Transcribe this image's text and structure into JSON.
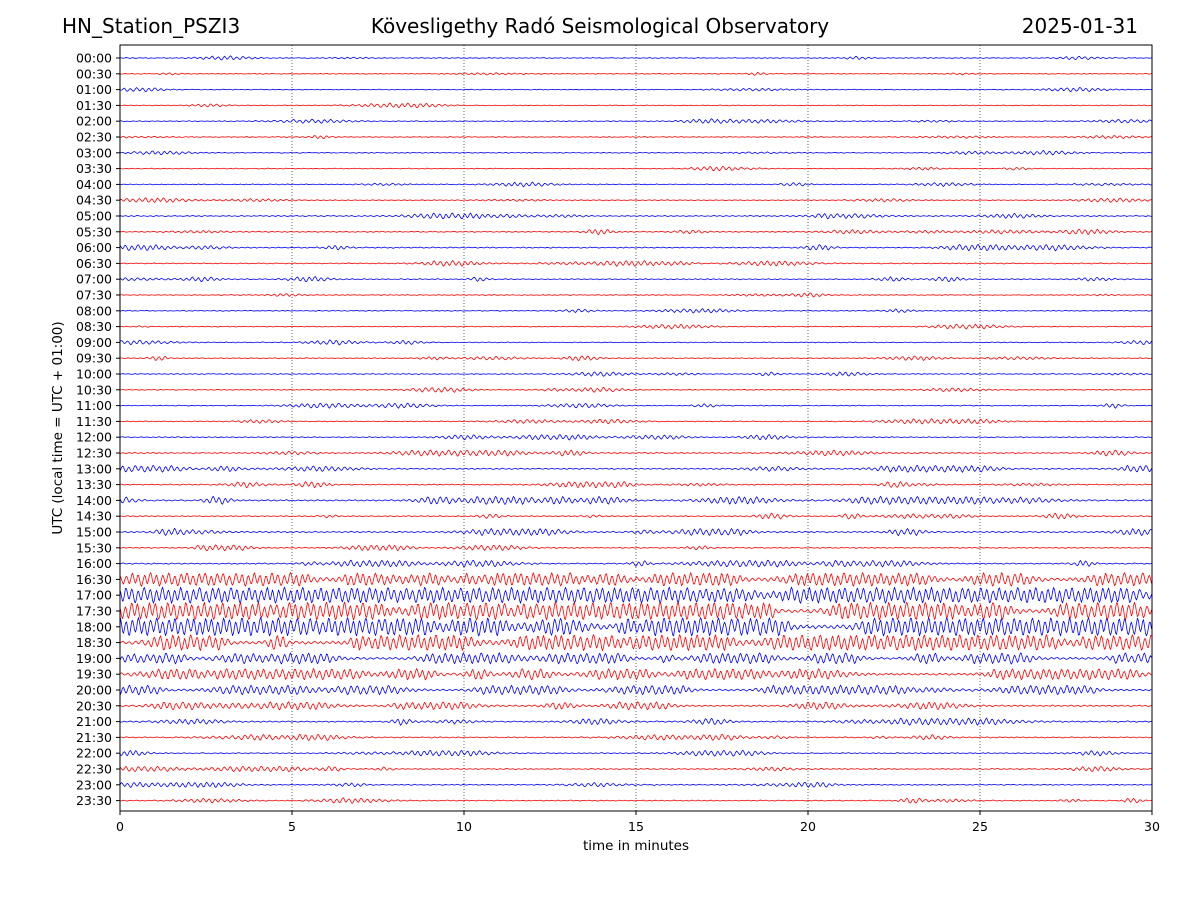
{
  "header": {
    "station": "HN_Station_PSZI3",
    "title": "Kövesligethy Radó Seismological Observatory",
    "date": "2025-01-31"
  },
  "chart_data": {
    "type": "line",
    "title": "Kövesligethy Radó Seismological Observatory",
    "xlabel": "time in minutes",
    "ylabel": "UTC (local time = UTC + 01:00)",
    "xlim": [
      0,
      30
    ],
    "xticks": [
      0,
      5,
      10,
      15,
      20,
      25,
      30
    ],
    "grid": "vertical dotted at x = 5, 10, 15, 20, 25",
    "rows": [
      "00:00",
      "00:30",
      "01:00",
      "01:30",
      "02:00",
      "02:30",
      "03:00",
      "03:30",
      "04:00",
      "04:30",
      "05:00",
      "05:30",
      "06:00",
      "06:30",
      "07:00",
      "07:30",
      "08:00",
      "08:30",
      "09:00",
      "09:30",
      "10:00",
      "10:30",
      "11:00",
      "11:30",
      "12:00",
      "12:30",
      "13:00",
      "13:30",
      "14:00",
      "14:30",
      "15:00",
      "15:30",
      "16:00",
      "16:30",
      "17:00",
      "17:30",
      "18:00",
      "18:30",
      "19:00",
      "19:30",
      "20:00",
      "20:30",
      "21:00",
      "21:30",
      "22:00",
      "22:30",
      "23:00",
      "23:30"
    ],
    "row_colors": [
      "#0000ff",
      "#ff0000"
    ],
    "relative_activity": [
      0.05,
      0.04,
      0.04,
      0.04,
      0.06,
      0.05,
      0.05,
      0.05,
      0.07,
      0.07,
      0.12,
      0.12,
      0.14,
      0.11,
      0.1,
      0.05,
      0.05,
      0.05,
      0.06,
      0.08,
      0.07,
      0.07,
      0.08,
      0.07,
      0.09,
      0.14,
      0.18,
      0.15,
      0.25,
      0.14,
      0.2,
      0.12,
      0.18,
      0.6,
      0.75,
      0.85,
      0.9,
      0.75,
      0.45,
      0.45,
      0.35,
      0.25,
      0.2,
      0.15,
      0.12,
      0.1,
      0.1,
      0.1
    ]
  }
}
